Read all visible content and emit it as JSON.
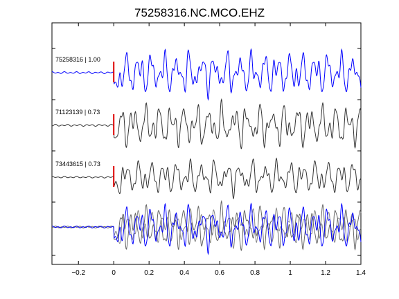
{
  "chart_data": {
    "type": "line",
    "title": "75258316.NC.MCO.EHZ",
    "xlabel": "",
    "ylabel": "",
    "xlim": [
      -0.35,
      1.4
    ],
    "xticks": [
      -0.2,
      0,
      0.2,
      0.4,
      0.6,
      0.8,
      1,
      1.2,
      1.4
    ],
    "xtick_labels": [
      "−0.2",
      "0",
      "0.2",
      "0.4",
      "0.6",
      "0.8",
      "1",
      "1.2",
      "1.4"
    ],
    "grid": false,
    "pick_time": 0,
    "pick_color": "#dd0000",
    "series": [
      {
        "name": "75258316 | 1.00",
        "color": "#0000ff",
        "baseline": 1,
        "amp": 1.0,
        "seed": 1.7
      },
      {
        "name": "71123139 | 0.73",
        "color": "#333333",
        "baseline": 2,
        "amp": 1.0,
        "seed": 4.3
      },
      {
        "name": "73443615 | 0.73",
        "color": "#333333",
        "baseline": 3,
        "amp": 0.8,
        "seed": 7.9
      }
    ],
    "overlay": {
      "baseline": 4,
      "series_colors": [
        "#0000ff",
        "#666666",
        "#888888"
      ]
    }
  }
}
